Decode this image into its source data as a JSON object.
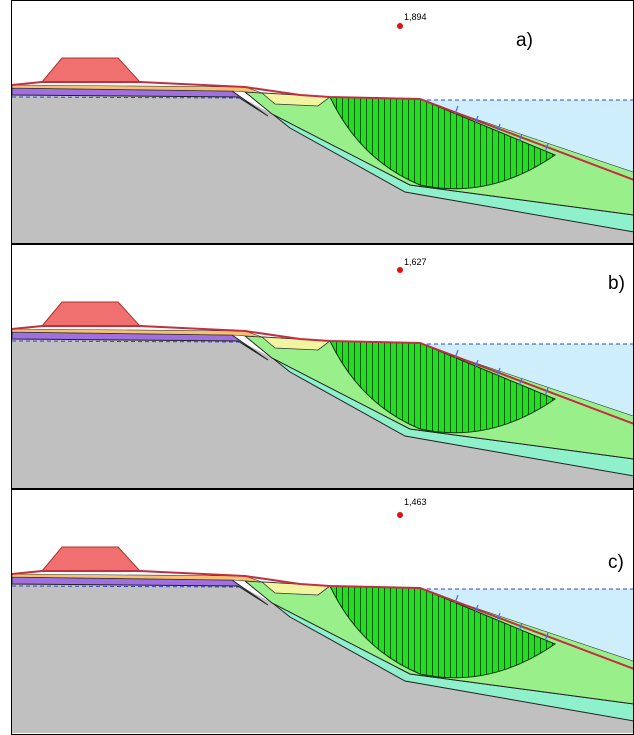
{
  "panels": [
    {
      "factor": "1,894",
      "label": "a)"
    },
    {
      "factor": "1,627",
      "label": "b)"
    },
    {
      "factor": "1,463",
      "label": "c)"
    }
  ]
}
